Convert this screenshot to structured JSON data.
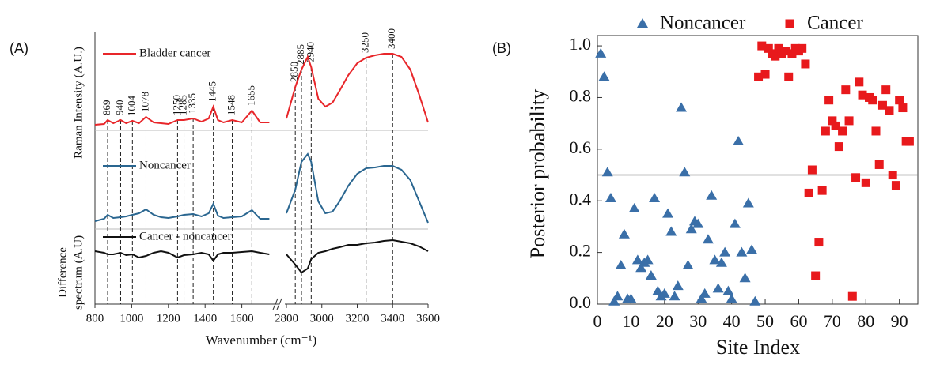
{
  "chart_data": [
    {
      "type": "line",
      "label": "(A)",
      "xlabel": "Wavenumber (cm⁻¹)",
      "ylabel": "Raman Intensity (A.U.)",
      "ylabel2": [
        "Difference",
        "spectrum (A.U)"
      ],
      "xlim": [
        [
          800,
          1800
        ],
        [
          2800,
          3600
        ]
      ],
      "xticks": [
        800,
        1000,
        1200,
        1400,
        1600,
        2800,
        3000,
        3200,
        3400,
        3600
      ],
      "ylim": [
        0,
        345
      ],
      "peaks": [
        869,
        940,
        1004,
        1078,
        1250,
        1285,
        1335,
        1445,
        1548,
        1655,
        2850,
        2885,
        2940,
        3250,
        3400
      ],
      "x": [
        800,
        850,
        869,
        900,
        940,
        970,
        1004,
        1040,
        1078,
        1120,
        1160,
        1200,
        1250,
        1285,
        1335,
        1380,
        1420,
        1445,
        1470,
        1500,
        1548,
        1600,
        1655,
        1700,
        1750,
        1780,
        2800,
        2850,
        2885,
        2920,
        2940,
        2980,
        3020,
        3060,
        3100,
        3150,
        3200,
        3250,
        3300,
        3350,
        3400,
        3450,
        3500,
        3550,
        3600
      ],
      "series": [
        {
          "name": "Bladder cancer",
          "color": "#e8262a",
          "values": [
            227,
            228,
            233,
            229,
            233,
            229,
            232,
            229,
            237,
            230,
            229,
            228,
            233,
            233,
            235,
            231,
            235,
            250,
            233,
            230,
            233,
            230,
            245,
            230,
            230,
            null,
            235,
            275,
            297,
            313,
            300,
            260,
            250,
            255,
            270,
            290,
            305,
            312,
            315,
            317,
            317,
            313,
            297,
            265,
            230
          ]
        },
        {
          "name": "Noncancer",
          "color": "#2a6690",
          "values": [
            105,
            108,
            113,
            109,
            110,
            111,
            113,
            115,
            120,
            113,
            110,
            109,
            111,
            113,
            114,
            111,
            115,
            127,
            112,
            109,
            110,
            111,
            119,
            108,
            108,
            null,
            115,
            145,
            180,
            190,
            180,
            130,
            115,
            117,
            130,
            150,
            165,
            172,
            173,
            175,
            175,
            170,
            157,
            130,
            103
          ]
        },
        {
          "name": "Cancer - noncancer",
          "color": "#111111",
          "values": [
            67,
            65,
            63,
            63,
            65,
            62,
            63,
            59,
            61,
            65,
            67,
            65,
            59,
            62,
            63,
            65,
            63,
            55,
            63,
            65,
            65,
            66,
            67,
            65,
            63,
            null,
            63,
            50,
            40,
            45,
            57,
            65,
            67,
            70,
            72,
            75,
            75,
            77,
            78,
            80,
            81,
            79,
            77,
            73,
            67
          ]
        }
      ]
    },
    {
      "type": "scatter",
      "label": "(B)",
      "xlabel": "Site Index",
      "ylabel": "Posterior probability",
      "xlim": [
        0,
        95.5
      ],
      "ylim": [
        0,
        1.04
      ],
      "xticks": [
        0,
        10,
        20,
        30,
        40,
        50,
        60,
        70,
        80,
        90
      ],
      "yticks": [
        {
          "value": 0,
          "label": "0.0"
        },
        {
          "value": 0.2,
          "label": "0.2"
        },
        {
          "value": 0.4,
          "label": "0.4"
        },
        {
          "value": 0.6,
          "label": "0.6"
        },
        {
          "value": 0.8,
          "label": "0.8"
        },
        {
          "value": 1,
          "label": "1.0"
        }
      ],
      "threshold": 0.5,
      "series": [
        {
          "name": "Noncancer",
          "color": "#3a6fa8",
          "marker": "triangle",
          "x": [
            1,
            2,
            3,
            4,
            5,
            6,
            7,
            8,
            9,
            10,
            11,
            12,
            13,
            14,
            15,
            16,
            17,
            18,
            19,
            20,
            21,
            22,
            23,
            24,
            25,
            26,
            27,
            28,
            29,
            30,
            31,
            32,
            33,
            34,
            35,
            36,
            37,
            38,
            39,
            40,
            41,
            42,
            43,
            44,
            45,
            46,
            47
          ],
          "values": [
            0.97,
            0.88,
            0.51,
            0.41,
            0.01,
            0.03,
            0.15,
            0.27,
            0.02,
            0.02,
            0.37,
            0.17,
            0.14,
            0.16,
            0.17,
            0.11,
            0.41,
            0.05,
            0.03,
            0.04,
            0.35,
            0.28,
            0.03,
            0.07,
            0.76,
            0.51,
            0.15,
            0.29,
            0.32,
            0.31,
            0.02,
            0.04,
            0.25,
            0.42,
            0.17,
            0.06,
            0.16,
            0.2,
            0.05,
            0.02,
            0.31,
            0.63,
            0.2,
            0.1,
            0.39,
            0.21,
            0.01
          ]
        },
        {
          "name": "Cancer",
          "color": "#e8191c",
          "marker": "square",
          "x": [
            48,
            49,
            50,
            51,
            52,
            53,
            54,
            55,
            56,
            57,
            58,
            59,
            60,
            61,
            62,
            63,
            64,
            65,
            66,
            67,
            68,
            69,
            70,
            71,
            72,
            73,
            74,
            75,
            76,
            77,
            78,
            79,
            80,
            81,
            82,
            83,
            84,
            85,
            86,
            87,
            88,
            89,
            90,
            91,
            92,
            93
          ],
          "values": [
            0.88,
            1.0,
            0.89,
            0.99,
            0.97,
            0.96,
            0.99,
            0.97,
            0.98,
            0.88,
            0.97,
            0.99,
            0.98,
            0.99,
            0.93,
            0.43,
            0.52,
            0.11,
            0.24,
            0.44,
            0.67,
            0.79,
            0.71,
            0.69,
            0.61,
            0.67,
            0.83,
            0.71,
            0.03,
            0.49,
            0.86,
            0.81,
            0.47,
            0.8,
            0.79,
            0.67,
            0.54,
            0.77,
            0.83,
            0.75,
            0.5,
            0.46,
            0.79,
            0.76,
            0.63,
            0.63
          ]
        }
      ]
    }
  ]
}
